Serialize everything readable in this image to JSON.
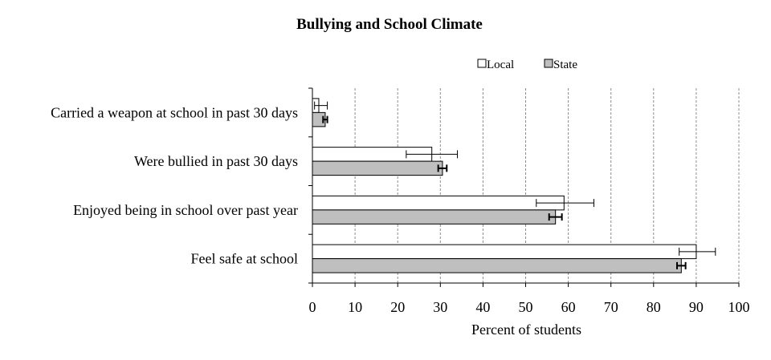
{
  "chart_data": {
    "type": "bar",
    "orientation": "horizontal",
    "title": "Bullying and School Climate",
    "xlabel": "Percent of students",
    "ylabel": "",
    "xlim": [
      0,
      100
    ],
    "xticks": [
      0,
      10,
      20,
      30,
      40,
      50,
      60,
      70,
      80,
      90,
      100
    ],
    "grid": "vertical dashed",
    "legend_position": "top-right",
    "categories": [
      "Carried a weapon at school in past 30 days",
      "Were bullied in past 30 days",
      "Enjoyed being in school over past year",
      "Feel safe at school"
    ],
    "series": [
      {
        "name": "Local",
        "color": "#ffffff",
        "values": [
          1.5,
          28,
          59,
          90
        ],
        "error_low": [
          0.5,
          22,
          52.5,
          86
        ],
        "error_high": [
          3.5,
          34,
          66,
          94.5
        ]
      },
      {
        "name": "State",
        "color": "#bfbfbf",
        "values": [
          3,
          30.5,
          57,
          86.5
        ],
        "error_low": [
          2.5,
          29.5,
          55.5,
          85.5
        ],
        "error_high": [
          3.5,
          31.5,
          58.5,
          87.5
        ]
      }
    ]
  }
}
